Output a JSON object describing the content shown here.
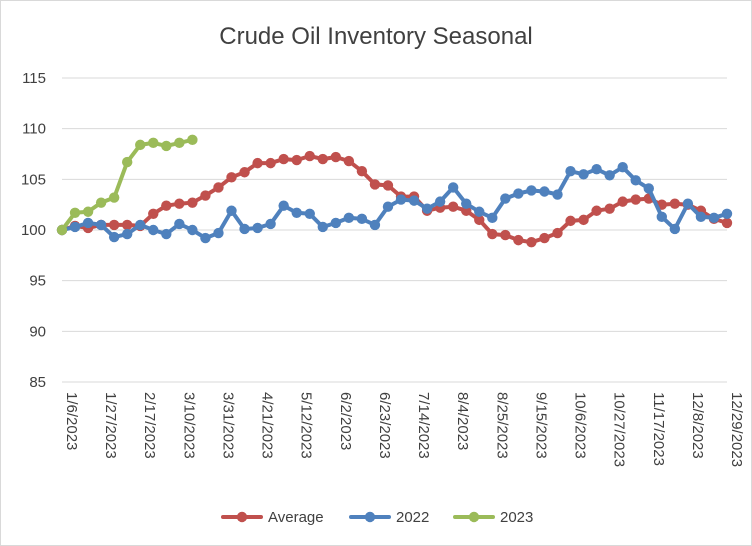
{
  "chart_data": {
    "type": "line",
    "title": "Crude Oil Inventory Seasonal",
    "xlabel": "",
    "ylabel": "",
    "ylim": [
      85,
      115
    ],
    "yticks": [
      85,
      90,
      95,
      100,
      105,
      110,
      115
    ],
    "x_tick_labels": [
      "1/6/2023",
      "1/27/2023",
      "2/17/2023",
      "3/10/2023",
      "3/31/2023",
      "4/21/2023",
      "5/12/2023",
      "6/2/2023",
      "6/23/2023",
      "7/14/2023",
      "8/4/2023",
      "8/25/2023",
      "9/15/2023",
      "10/6/2023",
      "10/27/2023",
      "11/17/2023",
      "12/8/2023",
      "12/29/2023"
    ],
    "grid": "horizontal",
    "legend": "bottom",
    "series": [
      {
        "name": "Average",
        "color": "#C0504D",
        "values": [
          100.0,
          100.4,
          100.2,
          100.5,
          100.5,
          100.5,
          100.4,
          101.6,
          102.4,
          102.6,
          102.7,
          103.4,
          104.2,
          105.2,
          105.7,
          106.6,
          106.6,
          107.0,
          106.9,
          107.3,
          107.0,
          107.2,
          106.8,
          105.8,
          104.5,
          104.4,
          103.3,
          103.3,
          101.9,
          102.2,
          102.3,
          101.9,
          101.0,
          99.6,
          99.5,
          99.0,
          98.8,
          99.2,
          99.7,
          100.9,
          101.0,
          101.9,
          102.1,
          102.8,
          103.0,
          103.1,
          102.5,
          102.6,
          102.5,
          101.9,
          101.1,
          100.7
        ]
      },
      {
        "name": "2022",
        "color": "#4F81BD",
        "values": [
          100.0,
          100.3,
          100.7,
          100.5,
          99.3,
          99.6,
          100.5,
          100.0,
          99.6,
          100.6,
          100.0,
          99.2,
          99.7,
          101.9,
          100.1,
          100.2,
          100.6,
          102.4,
          101.7,
          101.6,
          100.3,
          100.7,
          101.2,
          101.1,
          100.5,
          102.3,
          103.0,
          102.9,
          102.1,
          102.8,
          104.2,
          102.6,
          101.8,
          101.2,
          103.1,
          103.6,
          103.9,
          103.8,
          103.5,
          105.8,
          105.5,
          106.0,
          105.4,
          106.2,
          104.9,
          104.1,
          101.3,
          100.1,
          102.6,
          101.3,
          101.2,
          101.6
        ]
      },
      {
        "name": "2023",
        "color": "#9BBB59",
        "values": [
          100.0,
          101.7,
          101.8,
          102.7,
          103.2,
          106.7,
          108.4,
          108.6,
          108.3,
          108.6,
          108.9
        ]
      }
    ]
  }
}
